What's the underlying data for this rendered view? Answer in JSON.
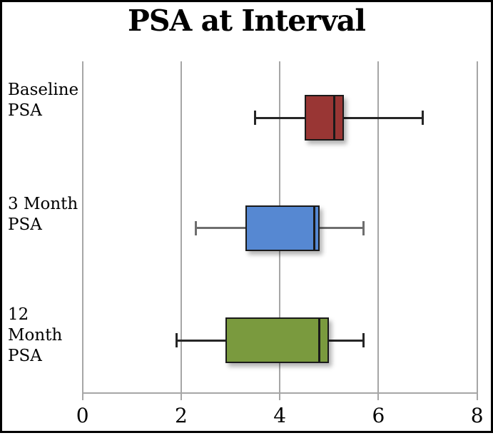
{
  "chart_data": {
    "type": "boxplot",
    "orientation": "horizontal",
    "title": "PSA at Interval",
    "x_axis": {
      "min": 0,
      "max": 8,
      "tick_values": [
        0,
        2,
        4,
        6,
        8
      ],
      "tick_labels": [
        "0",
        "2",
        "4",
        "6",
        "8"
      ],
      "gridlines": true
    },
    "categories": [
      "Baseline PSA",
      "3 Month PSA",
      "12 Month PSA"
    ],
    "series": [
      {
        "name": "Baseline PSA",
        "name_lines": [
          "Baseline",
          "PSA"
        ],
        "box_color": "#993634",
        "whisker_color": "#262626",
        "min": 3.5,
        "q1": 4.5,
        "median": 5.1,
        "q3": 5.3,
        "max": 6.9
      },
      {
        "name": "3 Month PSA",
        "name_lines": [
          "3 Month",
          "PSA"
        ],
        "box_color": "#5688d2",
        "whisker_color": "#6e6e6e",
        "min": 2.3,
        "q1": 3.3,
        "median": 4.7,
        "q3": 4.8,
        "max": 5.7
      },
      {
        "name": "12 Month PSA",
        "name_lines": [
          "12",
          "Month",
          "PSA"
        ],
        "box_color": "#7a9a3e",
        "whisker_color": "#262626",
        "min": 1.9,
        "q1": 2.9,
        "median": 4.8,
        "q3": 5.0,
        "max": 5.7
      }
    ],
    "colors": {
      "gridline": "#a6a6a6",
      "axis": "#a6a6a6",
      "text": "#000000",
      "box_border": "#1a1a1a"
    }
  }
}
